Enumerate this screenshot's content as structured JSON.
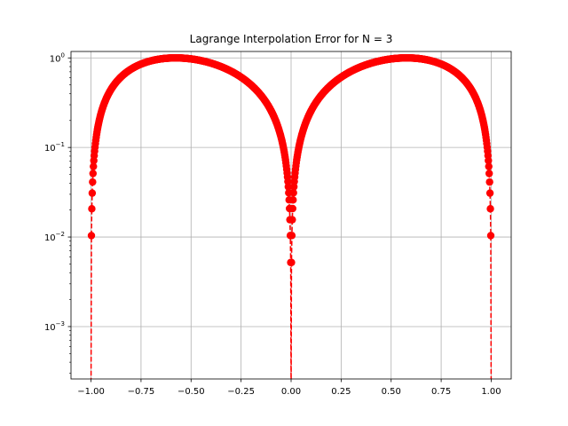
{
  "chart_data": {
    "type": "scatter",
    "title": "Lagrange Interpolation Error for N = 3",
    "xlabel": "",
    "ylabel": "",
    "xlim": [
      -1.1,
      1.1
    ],
    "ylim": [
      0.00026,
      1.18
    ],
    "yscale": "log",
    "grid": true,
    "x_ticks": [
      -1.0,
      -0.75,
      -0.5,
      -0.25,
      0.0,
      0.25,
      0.5,
      0.75,
      1.0
    ],
    "x_tick_labels": [
      "−1.00",
      "−0.75",
      "−0.50",
      "−0.25",
      "0.00",
      "0.25",
      "0.50",
      "0.75",
      "1.00"
    ],
    "y_ticks": [
      0.001,
      0.01,
      0.1,
      1
    ],
    "y_tick_labels": [
      {
        "base": "10",
        "exp": "−3"
      },
      {
        "base": "10",
        "exp": "−2"
      },
      {
        "base": "10",
        "exp": "−1"
      },
      {
        "base": "10",
        "exp": "0"
      }
    ],
    "series": [
      {
        "function": "|x^3 - x| * 2.5981",
        "x_range": [
          -1.0,
          1.0
        ],
        "num_points": 1001,
        "color": "#ff0000",
        "marker": "circle",
        "linestyle": "dashed"
      }
    ]
  }
}
